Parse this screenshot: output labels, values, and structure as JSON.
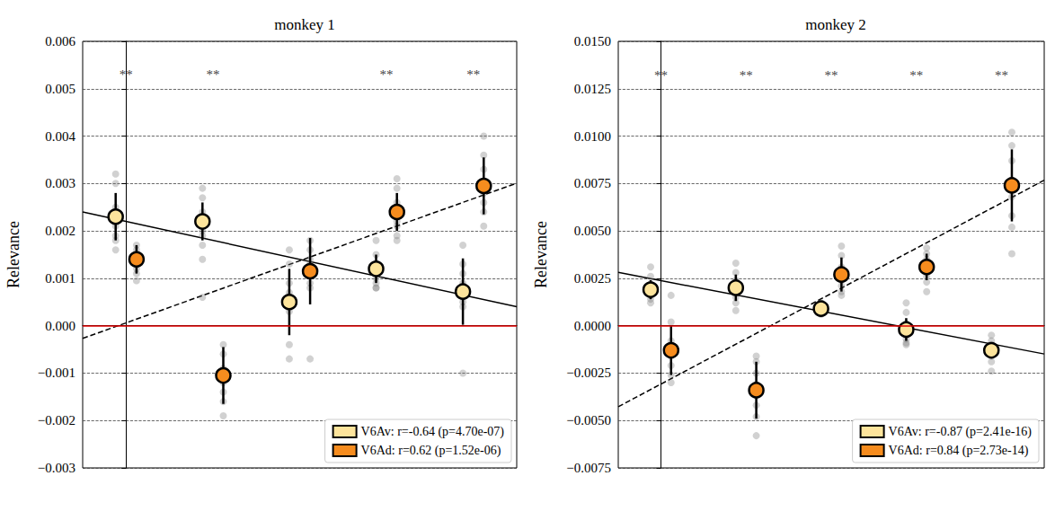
{
  "chart_data": [
    {
      "type": "scatter",
      "title": "monkey 1",
      "y_label": "Relevance",
      "categories": [
        null,
        null,
        null,
        null,
        null
      ],
      "ylim": [
        -0.003,
        0.006
      ],
      "yticks": [
        {
          "value": -0.003,
          "label": "−0.003"
        },
        {
          "value": -0.002,
          "label": "−0.002"
        },
        {
          "value": -0.001,
          "label": "−0.001"
        },
        {
          "value": 0,
          "label": "0.000"
        },
        0.001,
        0.002,
        0.003,
        0.004,
        0.005,
        0.006
      ],
      "grid": true,
      "legend": "lower right",
      "hline": 0,
      "annotations": [
        {
          "x": 0,
          "y": 0.0053,
          "text": "**"
        },
        {
          "x": 1,
          "y": 0.0053,
          "text": "**"
        },
        {
          "x": 3,
          "y": 0.0053,
          "text": "**"
        },
        {
          "x": 4,
          "y": 0.0053,
          "text": "**"
        }
      ],
      "series": [
        {
          "name": "V6Av: r=-0.64 (p=4.70e-07)",
          "color": "#fde49c",
          "line_style": "solid",
          "values": [
            0.0023,
            0.0022,
            0.0005,
            0.0012,
            0.00072
          ],
          "errors": [
            0.0005,
            0.0004,
            0.0007,
            0.0003,
            0.0007
          ],
          "points": [
            [
              0.0032,
              0.003,
              0.0025,
              0.0023,
              0.0021,
              0.0019,
              0.0018,
              0.0016
            ],
            [
              0.0029,
              0.0027,
              0.0024,
              0.0022,
              0.002,
              0.0019,
              0.0017,
              0.0014,
              0.0006
            ],
            [
              0.0016,
              0.0013,
              0.0009,
              0.0007,
              0.0005,
              0.0003,
              -0.0004,
              -0.0007
            ],
            [
              0.0018,
              0.0015,
              0.0013,
              0.0012,
              0.001,
              0.0009,
              0.0008,
              0.0008
            ],
            [
              0.0017,
              0.0013,
              0.0011,
              0.0009,
              0.0007,
              0.0005,
              0.0004,
              -0.001
            ]
          ],
          "fit": {
            "intercept": 0.0022,
            "slope": -0.0004
          }
        },
        {
          "name": "V6Ad: r=0.62 (p=1.52e-06)",
          "color": "#f68c1e",
          "line_style": "dashed",
          "values": [
            0.0014,
            -0.00105,
            0.00115,
            0.0024,
            0.00295
          ],
          "errors": [
            0.0003,
            0.0006,
            0.0007,
            0.0004,
            0.0006
          ],
          "points": [
            [
              0.0017,
              0.0016,
              0.0015,
              0.0014,
              0.0013,
              0.0012,
              0.0011,
              0.00095
            ],
            [
              -0.0004,
              -0.0006,
              -0.0009,
              -0.0011,
              -0.0012,
              -0.0014,
              -0.0016,
              -0.0019
            ],
            [
              0.0018,
              0.0016,
              0.0014,
              0.0013,
              0.0011,
              0.0009,
              0.0008,
              -0.0007
            ],
            [
              0.0031,
              0.0029,
              0.0026,
              0.0024,
              0.0022,
              0.0021,
              0.0019,
              0.0018
            ],
            [
              0.004,
              0.0036,
              0.0033,
              0.003,
              0.0028,
              0.0026,
              0.0024,
              0.0021
            ]
          ],
          "fit": {
            "intercept": 6e-05,
            "slope": 0.000655
          }
        }
      ]
    },
    {
      "type": "scatter",
      "title": "monkey 2",
      "y_label": "Relevance",
      "categories": [
        null,
        null,
        null,
        null,
        null
      ],
      "ylim": [
        -0.0075,
        0.015
      ],
      "yticks": [
        {
          "value": -0.0075,
          "label": "−0.0075"
        },
        {
          "value": -0.005,
          "label": "−0.0050"
        },
        {
          "value": -0.0025,
          "label": "−0.0025"
        },
        {
          "value": 0,
          "label": "0.0000"
        },
        0.0025,
        {
          "value": 0.005,
          "label": "0.0050"
        },
        0.0075,
        {
          "value": 0.01,
          "label": "0.0100"
        },
        0.0125,
        {
          "value": 0.015,
          "label": "0.0150"
        }
      ],
      "grid": true,
      "legend": "lower right",
      "hline": 0,
      "annotations": [
        {
          "x": 0,
          "y": 0.0132,
          "text": "**"
        },
        {
          "x": 1,
          "y": 0.0132,
          "text": "**"
        },
        {
          "x": 2,
          "y": 0.0132,
          "text": "**"
        },
        {
          "x": 3,
          "y": 0.0132,
          "text": "**"
        },
        {
          "x": 4,
          "y": 0.0132,
          "text": "**"
        }
      ],
      "series": [
        {
          "name": "V6Av: r=-0.87 (p=2.41e-16)",
          "color": "#fde49c",
          "line_style": "solid",
          "values": [
            0.0019,
            0.002,
            0.0009,
            -0.0002,
            -0.0013
          ],
          "errors": [
            0.0005,
            0.0007,
            0.0003,
            0.0006,
            0.0004
          ],
          "points": [
            [
              0.0031,
              0.0026,
              0.0022,
              0.002,
              0.0018,
              0.0016,
              0.0014,
              0.0012
            ],
            [
              0.0033,
              0.0028,
              0.0024,
              0.002,
              0.0018,
              0.0015,
              0.0012,
              0.0008
            ],
            [
              0.0012,
              0.0011,
              0.001,
              0.0009,
              0.0008,
              0.0007,
              0.0006
            ],
            [
              0.0012,
              0.0007,
              0.0001,
              -0.0003,
              -0.0005,
              -0.0007,
              -0.0009,
              -0.001
            ],
            [
              -0.0005,
              -0.0008,
              -0.001,
              -0.0012,
              -0.0014,
              -0.0016,
              -0.0019,
              -0.0024
            ]
          ],
          "fit": {
            "intercept": 0.00238,
            "slope": -0.00086
          }
        },
        {
          "name": "V6Ad: r=0.84 (p=2.73e-14)",
          "color": "#f68c1e",
          "line_style": "dashed",
          "values": [
            -0.0013,
            -0.0034,
            0.0027,
            0.0031,
            0.0074
          ],
          "errors": [
            0.0013,
            0.0015,
            0.0009,
            0.0007,
            0.0019
          ],
          "points": [
            [
              0.0016,
              0.0002,
              -0.0008,
              -0.0012,
              -0.0016,
              -0.0021,
              -0.0026,
              -0.003
            ],
            [
              -0.0016,
              -0.0019,
              -0.0025,
              -0.0031,
              -0.0037,
              -0.0042,
              -0.0048,
              -0.0058
            ],
            [
              0.0042,
              0.0037,
              0.0031,
              0.0027,
              0.0024,
              0.0021,
              0.0018,
              0.0016
            ],
            [
              0.0041,
              0.0038,
              0.0035,
              0.0031,
              0.0029,
              0.0026,
              0.0023,
              0.0018
            ],
            [
              0.0102,
              0.0095,
              0.0087,
              0.0076,
              0.0068,
              0.0058,
              0.0052,
              0.0038
            ]
          ],
          "fit": {
            "intercept": -0.00308,
            "slope": 0.00239
          }
        }
      ]
    }
  ]
}
